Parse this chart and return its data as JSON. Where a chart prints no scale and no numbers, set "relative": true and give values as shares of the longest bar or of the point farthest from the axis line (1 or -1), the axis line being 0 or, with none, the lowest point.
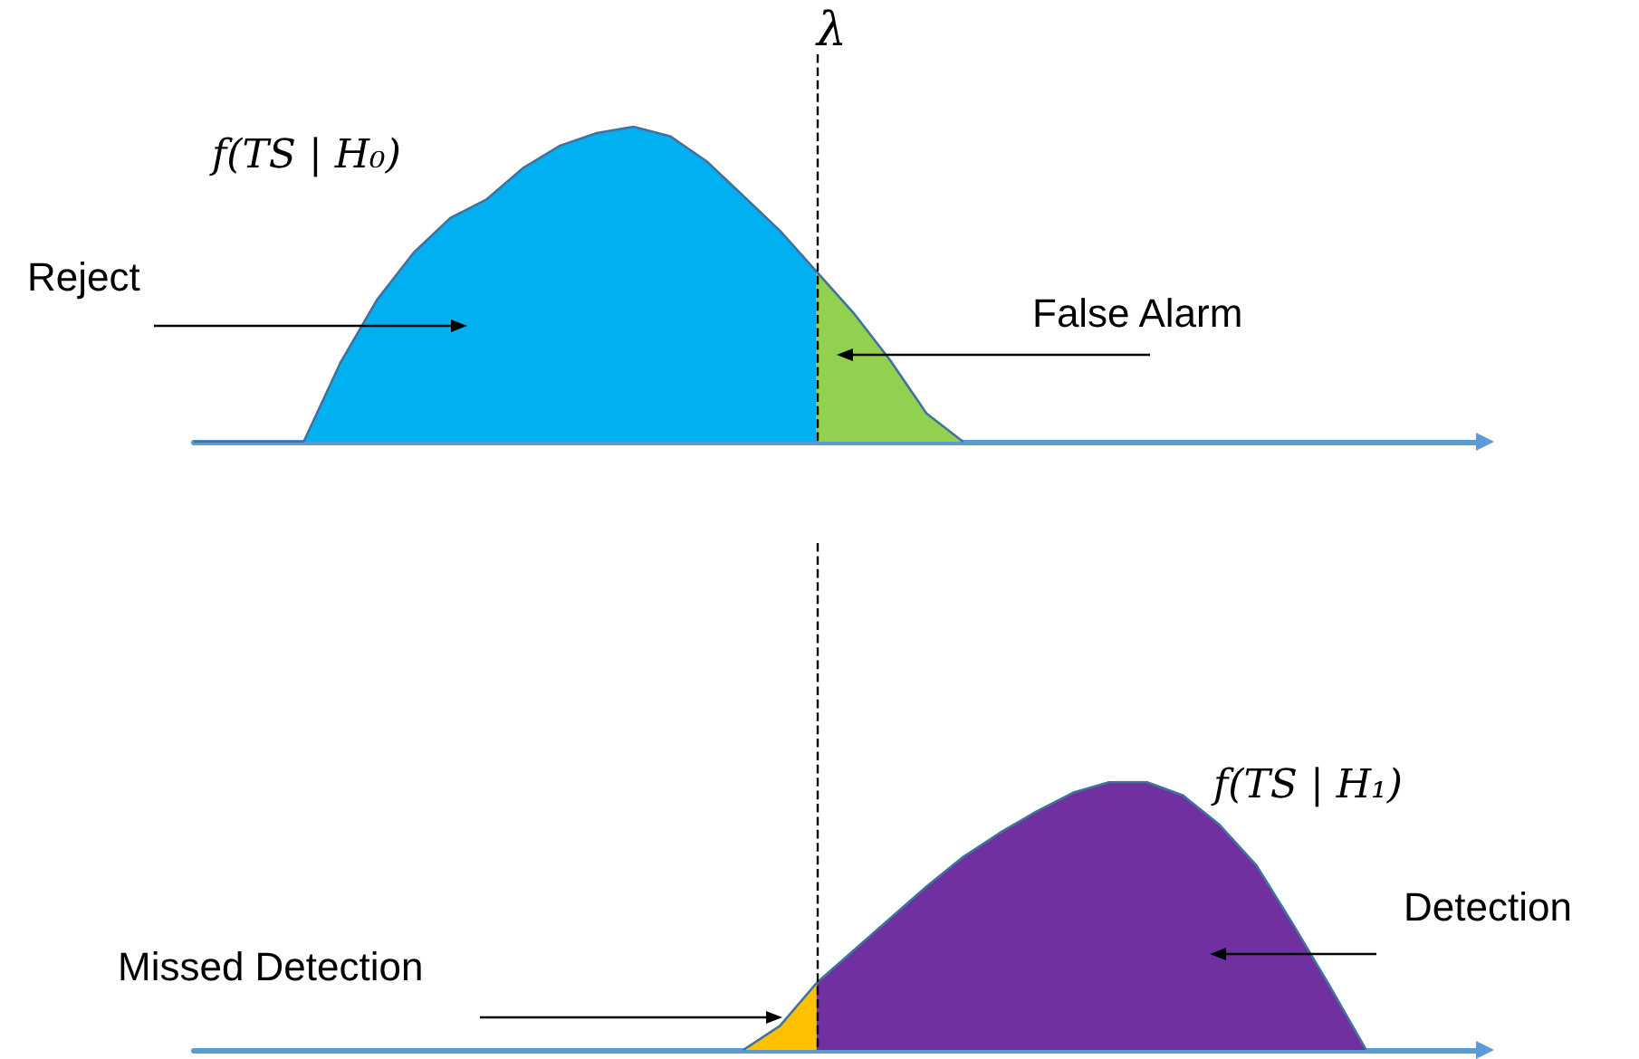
{
  "chart_data": [
    {
      "type": "area",
      "title": "f(TS | H₀)",
      "relative": true,
      "tick_labels": false,
      "categories": [
        null,
        null,
        null,
        null,
        null,
        null,
        null,
        null,
        null,
        null,
        null,
        null,
        null,
        null,
        null,
        null,
        null,
        null,
        null,
        null,
        null,
        null,
        null,
        null,
        null,
        null,
        null,
        null,
        null,
        null,
        null,
        null,
        null,
        null,
        null,
        null
      ],
      "series": [
        {
          "color": "#00b0f0",
          "values": [
            0,
            0,
            0,
            0,
            0.25,
            0.45,
            0.6,
            0.71,
            0.77,
            0.87,
            0.94,
            0.98,
            1,
            0.97,
            0.89,
            0.78,
            0.67,
            0.54,
            null,
            null,
            null,
            null,
            null,
            null,
            null,
            null,
            null,
            null,
            null,
            null,
            null,
            null,
            null,
            null,
            null,
            null
          ]
        },
        {
          "color": "#92d050",
          "values": [
            null,
            null,
            null,
            null,
            null,
            null,
            null,
            null,
            null,
            null,
            null,
            null,
            null,
            null,
            null,
            null,
            null,
            0.54,
            0.41,
            0.26,
            0.09,
            0,
            null,
            null,
            null,
            null,
            null,
            null,
            null,
            null,
            null,
            null,
            null,
            null,
            null,
            null
          ]
        }
      ],
      "line_style": "solid",
      "annotations": [
        "Reject",
        "False Alarm",
        "λ"
      ]
    },
    {
      "type": "area",
      "title": "f(TS | H₁)",
      "relative": true,
      "tick_labels": false,
      "categories": [
        null,
        null,
        null,
        null,
        null,
        null,
        null,
        null,
        null,
        null,
        null,
        null,
        null,
        null,
        null,
        null,
        null,
        null,
        null,
        null,
        null,
        null,
        null,
        null,
        null,
        null,
        null,
        null,
        null,
        null,
        null,
        null,
        null,
        null,
        null,
        null
      ],
      "series": [
        {
          "color": "#ffc000",
          "values": [
            null,
            null,
            null,
            null,
            null,
            null,
            null,
            null,
            null,
            null,
            null,
            null,
            null,
            null,
            null,
            0,
            0.09,
            0.25,
            null,
            null,
            null,
            null,
            null,
            null,
            null,
            null,
            null,
            null,
            null,
            null,
            null,
            null,
            null,
            null,
            null,
            null
          ]
        },
        {
          "color": "#7030a0",
          "values": [
            null,
            null,
            null,
            null,
            null,
            null,
            null,
            null,
            null,
            null,
            null,
            null,
            null,
            null,
            null,
            null,
            null,
            0.25,
            0.37,
            0.49,
            0.61,
            0.72,
            0.81,
            0.89,
            0.96,
            1,
            1,
            0.95,
            0.84,
            0.69,
            0.47,
            0.24,
            0,
            null,
            null,
            null
          ]
        }
      ],
      "line_style": "solid",
      "annotations": [
        "Missed Detection",
        "Detection"
      ]
    }
  ]
}
